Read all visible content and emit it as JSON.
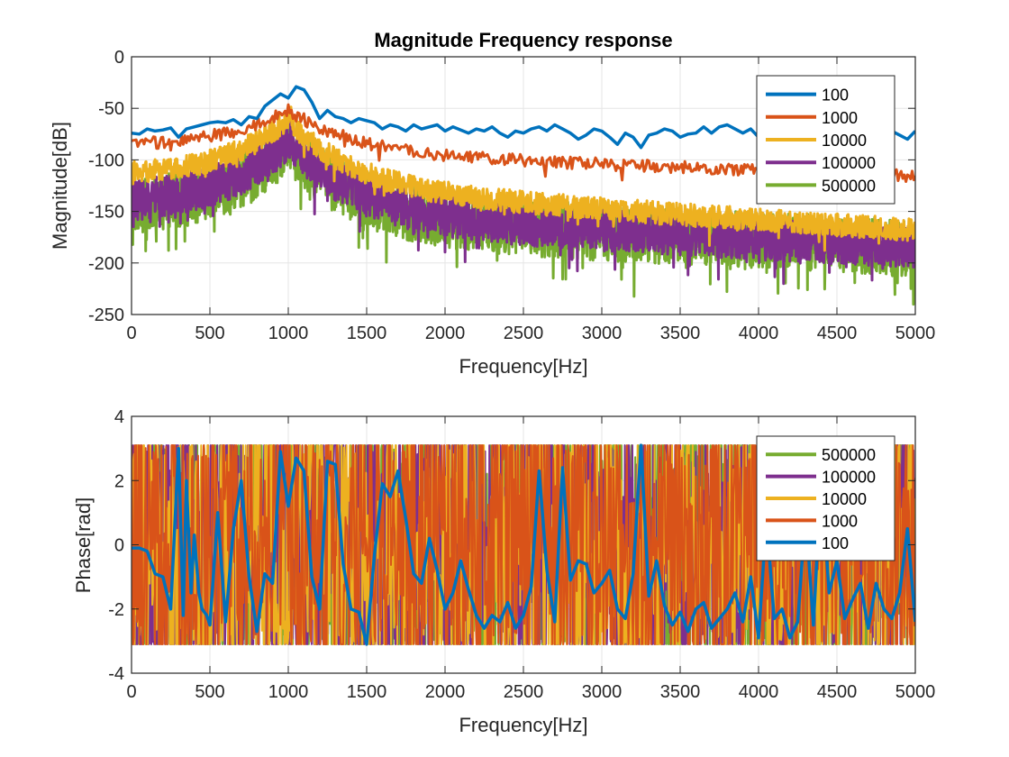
{
  "figure": {
    "background": "#ffffff"
  },
  "chart_data": [
    {
      "type": "line",
      "title": "Magnitude Frequency response",
      "xlabel": "Frequency[Hz]",
      "ylabel": "Magnitude[dB]",
      "xlim": [
        0,
        5000
      ],
      "ylim": [
        -250,
        0
      ],
      "xticks": [
        0,
        500,
        1000,
        1500,
        2000,
        2500,
        3000,
        3500,
        4000,
        4500,
        5000
      ],
      "yticks": [
        0,
        -50,
        -100,
        -150,
        -200,
        -250
      ],
      "grid": true,
      "legend_position": "top-right",
      "legend_order": [
        "100",
        "1000",
        "10000",
        "100000",
        "500000"
      ],
      "series": [
        {
          "name": "100",
          "color": "#0072BD",
          "width": 3.5,
          "style": "smooth",
          "x": [
            0,
            50,
            100,
            150,
            200,
            250,
            300,
            350,
            400,
            450,
            500,
            550,
            600,
            650,
            700,
            750,
            800,
            850,
            900,
            950,
            1000,
            1050,
            1100,
            1150,
            1200,
            1250,
            1300,
            1350,
            1400,
            1450,
            1500,
            1550,
            1600,
            1650,
            1700,
            1750,
            1800,
            1850,
            1900,
            1950,
            2000,
            2050,
            2100,
            2150,
            2200,
            2250,
            2300,
            2350,
            2400,
            2450,
            2500,
            2550,
            2600,
            2650,
            2700,
            2750,
            2800,
            2850,
            2900,
            2950,
            3000,
            3050,
            3100,
            3150,
            3200,
            3250,
            3300,
            3350,
            3400,
            3450,
            3500,
            3550,
            3600,
            3650,
            3700,
            3750,
            3800,
            3850,
            3900,
            3950,
            4000,
            4050,
            4100,
            4150,
            4200,
            4250,
            4300,
            4350,
            4400,
            4450,
            4500,
            4550,
            4600,
            4650,
            4700,
            4750,
            4800,
            4850,
            4900,
            4950,
            5000
          ],
          "y": [
            -74,
            -75,
            -70,
            -72,
            -71,
            -69,
            -78,
            -70,
            -68,
            -66,
            -64,
            -63,
            -64,
            -61,
            -66,
            -58,
            -60,
            -48,
            -42,
            -36,
            -40,
            -29,
            -32,
            -44,
            -60,
            -52,
            -58,
            -60,
            -64,
            -60,
            -62,
            -64,
            -70,
            -66,
            -68,
            -72,
            -66,
            -70,
            -68,
            -66,
            -72,
            -68,
            -71,
            -74,
            -70,
            -72,
            -68,
            -74,
            -78,
            -72,
            -74,
            -70,
            -68,
            -72,
            -66,
            -70,
            -74,
            -80,
            -76,
            -70,
            -72,
            -78,
            -85,
            -74,
            -78,
            -88,
            -76,
            -74,
            -70,
            -72,
            -78,
            -75,
            -74,
            -68,
            -74,
            -68,
            -66,
            -70,
            -74,
            -70,
            -78,
            -80,
            -72,
            -74,
            -70,
            -76,
            -70,
            -72,
            -70,
            -74,
            -76,
            -72,
            -74,
            -70,
            -76,
            -72,
            -74,
            -72,
            -76,
            -80,
            -72
          ]
        },
        {
          "name": "1000",
          "color": "#D95319",
          "width": 3,
          "model": {
            "peak": -48,
            "peak_hz": 1020,
            "floor": -88,
            "slope": -5.5,
            "noise": 12,
            "step": 10
          }
        },
        {
          "name": "10000",
          "color": "#EDB120",
          "width": 3,
          "model": {
            "peak": -55,
            "peak_hz": 1020,
            "floor": -118,
            "slope": -10,
            "noise": 22,
            "step": 3
          }
        },
        {
          "name": "100000",
          "color": "#7E2F8E",
          "width": 3,
          "model": {
            "peak": -75,
            "peak_hz": 1020,
            "floor": -145,
            "slope": -8,
            "noise": 40,
            "step": 2
          }
        },
        {
          "name": "500000",
          "color": "#77AC30",
          "width": 3,
          "model": {
            "peak": -82,
            "peak_hz": 1020,
            "floor": -150,
            "slope": -7,
            "noise": 55,
            "step": 2
          }
        }
      ]
    },
    {
      "type": "line",
      "title": "",
      "xlabel": "Frequency[Hz]",
      "ylabel": "Phase[rad]",
      "xlim": [
        0,
        5000
      ],
      "ylim": [
        -4,
        4
      ],
      "xticks": [
        0,
        500,
        1000,
        1500,
        2000,
        2500,
        3000,
        3500,
        4000,
        4500,
        5000
      ],
      "yticks": [
        4,
        2,
        0,
        -2,
        -4
      ],
      "grid": true,
      "legend_position": "top-right",
      "legend_order": [
        "500000",
        "100000",
        "10000",
        "1000",
        "100"
      ],
      "series": [
        {
          "name": "500000",
          "color": "#77AC30",
          "width": 2,
          "model": {
            "range": 3.1,
            "step": 3
          }
        },
        {
          "name": "100000",
          "color": "#7E2F8E",
          "width": 2,
          "model": {
            "range": 3.1,
            "step": 3
          }
        },
        {
          "name": "10000",
          "color": "#EDB120",
          "width": 2,
          "model": {
            "range": 3.1,
            "step": 4
          }
        },
        {
          "name": "1000",
          "color": "#D95319",
          "width": 2,
          "model": {
            "range": 3.1,
            "step": 5
          }
        },
        {
          "name": "100",
          "color": "#0072BD",
          "width": 3.5,
          "x": [
            0,
            50,
            100,
            150,
            200,
            250,
            300,
            330,
            350,
            380,
            400,
            430,
            450,
            480,
            500,
            550,
            600,
            650,
            700,
            750,
            800,
            850,
            900,
            950,
            1000,
            1050,
            1100,
            1150,
            1200,
            1250,
            1300,
            1350,
            1400,
            1450,
            1500,
            1550,
            1600,
            1650,
            1700,
            1750,
            1800,
            1850,
            1900,
            1950,
            2000,
            2050,
            2100,
            2150,
            2200,
            2250,
            2300,
            2350,
            2400,
            2450,
            2500,
            2550,
            2600,
            2650,
            2700,
            2750,
            2800,
            2850,
            2900,
            2950,
            3000,
            3050,
            3100,
            3150,
            3200,
            3250,
            3300,
            3350,
            3400,
            3450,
            3500,
            3550,
            3600,
            3650,
            3700,
            3750,
            3800,
            3850,
            3900,
            3950,
            4000,
            4050,
            4100,
            4150,
            4200,
            4250,
            4300,
            4350,
            4400,
            4450,
            4500,
            4550,
            4600,
            4650,
            4700,
            4750,
            4800,
            4850,
            4900,
            4950,
            5000
          ],
          "y": [
            -0.1,
            -0.1,
            -0.2,
            -0.9,
            -1.0,
            -2.0,
            3.0,
            -2.2,
            2.0,
            -1.5,
            0.3,
            -1.5,
            -2.0,
            -2.2,
            -2.5,
            1.0,
            -2.4,
            0.5,
            2.0,
            -1.0,
            -2.7,
            -0.9,
            -1.2,
            2.9,
            1.2,
            2.7,
            2.3,
            -1.0,
            -2.0,
            2.6,
            2.5,
            -0.6,
            -2.0,
            -2.1,
            -3.1,
            -0.3,
            1.9,
            1.5,
            2.3,
            0.8,
            -0.9,
            -1.2,
            0.2,
            -0.8,
            -2.0,
            -1.5,
            -0.5,
            -1.4,
            -2.2,
            -2.6,
            -2.2,
            -2.4,
            -1.8,
            -2.6,
            -2.2,
            -1.3,
            2.3,
            -0.8,
            -2.4,
            2.4,
            -1.1,
            -0.5,
            -0.6,
            -1.5,
            -1.2,
            -0.8,
            -2.0,
            -2.3,
            -0.9,
            3.1,
            -1.6,
            -0.5,
            -1.9,
            -2.5,
            -2.1,
            -2.7,
            -2.0,
            -1.8,
            -2.6,
            -2.3,
            -2.0,
            -1.5,
            -2.4,
            -1.0,
            -2.9,
            0.8,
            -2.3,
            -2.0,
            -2.9,
            -2.4,
            1.0,
            -2.5,
            2.2,
            -1.5,
            -0.5,
            -2.3,
            -1.7,
            -1.2,
            -2.6,
            -1.2,
            -2.0,
            -2.3,
            -1.5,
            0.5,
            -2.4
          ]
        }
      ]
    }
  ]
}
